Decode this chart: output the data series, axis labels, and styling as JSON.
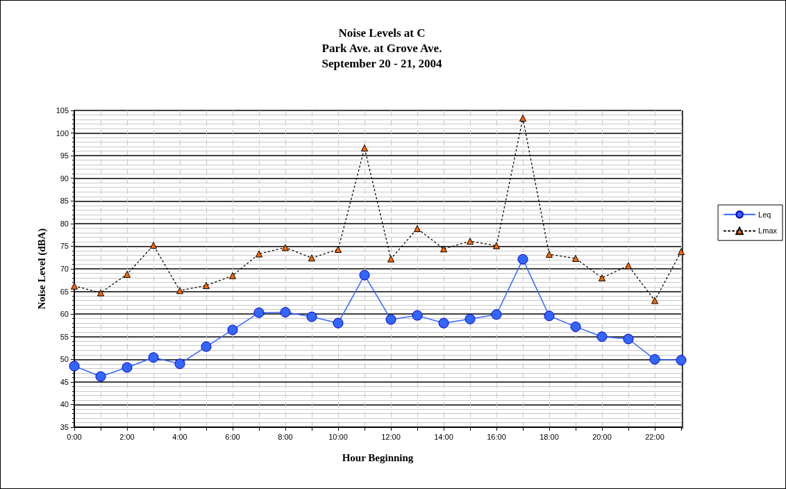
{
  "chart_data": {
    "type": "line",
    "title": "Noise Levels at C\nPark Ave. at Grove Ave.\nSeptember 20 - 21, 2004",
    "xlabel": "Hour Beginning",
    "ylabel": "Noise Level (dBA)",
    "categories": [
      "0:00",
      null,
      "2:00",
      null,
      "4:00",
      null,
      "6:00",
      null,
      "8:00",
      null,
      "10:00",
      null,
      "12:00",
      null,
      "14:00",
      null,
      "16:00",
      null,
      "18:00",
      null,
      "20:00",
      null,
      "22:00",
      null
    ],
    "series": [
      {
        "name": "Leq",
        "color": "#3366ff",
        "marker": "circle",
        "line_style": "solid",
        "values": [
          48.5,
          46.2,
          48.2,
          50.4,
          49.0,
          52.8,
          56.5,
          60.3,
          60.4,
          59.4,
          58.0,
          68.6,
          58.8,
          59.7,
          58.0,
          58.9,
          59.9,
          72.1,
          59.6,
          57.2,
          55.0,
          54.5,
          50.0,
          49.8
        ]
      },
      {
        "name": "Lmax",
        "color": "#ff6600",
        "marker": "triangle",
        "line_style": "dotted",
        "values": [
          66.2,
          64.7,
          68.8,
          75.2,
          65.2,
          66.3,
          68.5,
          73.3,
          74.7,
          72.4,
          74.3,
          96.7,
          72.2,
          78.9,
          74.4,
          76.1,
          75.1,
          103.3,
          73.2,
          72.3,
          68.0,
          70.7,
          63.0,
          73.8
        ]
      }
    ],
    "ylim": [
      35,
      105
    ],
    "yticks": [
      35,
      40,
      45,
      50,
      55,
      60,
      65,
      70,
      75,
      80,
      85,
      90,
      95,
      100,
      105
    ],
    "grid": true,
    "legend": "right"
  }
}
